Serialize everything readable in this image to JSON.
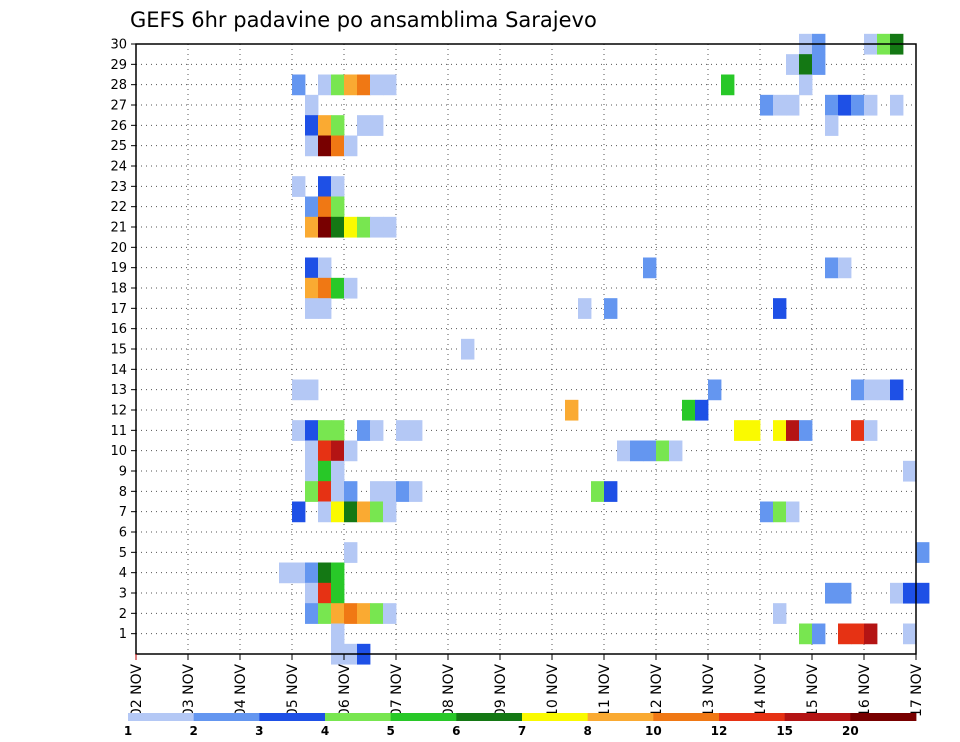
{
  "chart_data": {
    "type": "heatmap",
    "title": "GEFS 6hr padavine po ansamblima Sarajevo",
    "xlabel": "",
    "ylabel": "",
    "y_tick_labels": [
      "1",
      "2",
      "3",
      "4",
      "5",
      "6",
      "7",
      "8",
      "9",
      "10",
      "11",
      "12",
      "13",
      "14",
      "15",
      "16",
      "17",
      "18",
      "19",
      "20",
      "21",
      "22",
      "23",
      "24",
      "25",
      "26",
      "27",
      "28",
      "29",
      "30"
    ],
    "x_tick_labels": [
      "02 NOV",
      "03 NOV",
      "04 NOV",
      "05 NOV",
      "06 NOV",
      "07 NOV",
      "08 NOV",
      "09 NOV",
      "10 NOV",
      "11 NOV",
      "12 NOV",
      "13 NOV",
      "14 NOV",
      "15 NOV",
      "16 NOV",
      "17 NOV"
    ],
    "x_range_days": [
      0,
      15
    ],
    "y_range_members": [
      0,
      30
    ],
    "grid": true,
    "time_step_hours": 6,
    "colorbar": {
      "colors": [
        "#b4c8f5",
        "#6496f0",
        "#1e50e6",
        "#78e650",
        "#28c828",
        "#147814",
        "#fafa00",
        "#faaa32",
        "#f07814",
        "#e63214",
        "#b41414",
        "#780000"
      ],
      "tick_labels": [
        "1",
        "2",
        "3",
        "4",
        "5",
        "6",
        "7",
        "8",
        "10",
        "12",
        "15",
        "20"
      ]
    },
    "units_note": "columns are 6-hour steps from 02 NOV 00Z; value = colorbar class index 0-11",
    "cells": [
      {
        "member": 30,
        "step": 51,
        "class": 0
      },
      {
        "member": 30,
        "step": 52,
        "class": 1
      },
      {
        "member": 30,
        "step": 56,
        "class": 0
      },
      {
        "member": 30,
        "step": 57,
        "class": 3
      },
      {
        "member": 30,
        "step": 58,
        "class": 5
      },
      {
        "member": 29,
        "step": 50,
        "class": 0
      },
      {
        "member": 29,
        "step": 51,
        "class": 5
      },
      {
        "member": 29,
        "step": 52,
        "class": 1
      },
      {
        "member": 28,
        "step": 12,
        "class": 1
      },
      {
        "member": 28,
        "step": 14,
        "class": 0
      },
      {
        "member": 28,
        "step": 15,
        "class": 3
      },
      {
        "member": 28,
        "step": 16,
        "class": 7
      },
      {
        "member": 28,
        "step": 17,
        "class": 8
      },
      {
        "member": 28,
        "step": 18,
        "class": 0
      },
      {
        "member": 28,
        "step": 19,
        "class": 0
      },
      {
        "member": 28,
        "step": 45,
        "class": 4
      },
      {
        "member": 28,
        "step": 51,
        "class": 0
      },
      {
        "member": 27,
        "step": 13,
        "class": 0
      },
      {
        "member": 27,
        "step": 48,
        "class": 1
      },
      {
        "member": 27,
        "step": 49,
        "class": 0
      },
      {
        "member": 27,
        "step": 50,
        "class": 0
      },
      {
        "member": 27,
        "step": 53,
        "class": 1
      },
      {
        "member": 27,
        "step": 54,
        "class": 2
      },
      {
        "member": 27,
        "step": 55,
        "class": 1
      },
      {
        "member": 27,
        "step": 56,
        "class": 0
      },
      {
        "member": 27,
        "step": 58,
        "class": 0
      },
      {
        "member": 26,
        "step": 13,
        "class": 2
      },
      {
        "member": 26,
        "step": 14,
        "class": 7
      },
      {
        "member": 26,
        "step": 15,
        "class": 3
      },
      {
        "member": 26,
        "step": 17,
        "class": 0
      },
      {
        "member": 26,
        "step": 18,
        "class": 0
      },
      {
        "member": 26,
        "step": 53,
        "class": 0
      },
      {
        "member": 25,
        "step": 13,
        "class": 0
      },
      {
        "member": 25,
        "step": 14,
        "class": 11
      },
      {
        "member": 25,
        "step": 15,
        "class": 8
      },
      {
        "member": 25,
        "step": 16,
        "class": 0
      },
      {
        "member": 23,
        "step": 12,
        "class": 0
      },
      {
        "member": 23,
        "step": 14,
        "class": 2
      },
      {
        "member": 23,
        "step": 15,
        "class": 0
      },
      {
        "member": 22,
        "step": 13,
        "class": 1
      },
      {
        "member": 22,
        "step": 14,
        "class": 8
      },
      {
        "member": 22,
        "step": 15,
        "class": 3
      },
      {
        "member": 21,
        "step": 13,
        "class": 7
      },
      {
        "member": 21,
        "step": 14,
        "class": 11
      },
      {
        "member": 21,
        "step": 15,
        "class": 5
      },
      {
        "member": 21,
        "step": 16,
        "class": 6
      },
      {
        "member": 21,
        "step": 17,
        "class": 3
      },
      {
        "member": 21,
        "step": 18,
        "class": 0
      },
      {
        "member": 21,
        "step": 19,
        "class": 0
      },
      {
        "member": 19,
        "step": 13,
        "class": 2
      },
      {
        "member": 19,
        "step": 14,
        "class": 0
      },
      {
        "member": 19,
        "step": 39,
        "class": 1
      },
      {
        "member": 19,
        "step": 53,
        "class": 1
      },
      {
        "member": 19,
        "step": 54,
        "class": 0
      },
      {
        "member": 18,
        "step": 13,
        "class": 7
      },
      {
        "member": 18,
        "step": 14,
        "class": 8
      },
      {
        "member": 18,
        "step": 15,
        "class": 4
      },
      {
        "member": 18,
        "step": 16,
        "class": 0
      },
      {
        "member": 17,
        "step": 13,
        "class": 0
      },
      {
        "member": 17,
        "step": 14,
        "class": 0
      },
      {
        "member": 17,
        "step": 34,
        "class": 0
      },
      {
        "member": 17,
        "step": 36,
        "class": 1
      },
      {
        "member": 17,
        "step": 49,
        "class": 2
      },
      {
        "member": 15,
        "step": 25,
        "class": 0
      },
      {
        "member": 13,
        "step": 12,
        "class": 0
      },
      {
        "member": 13,
        "step": 13,
        "class": 0
      },
      {
        "member": 13,
        "step": 44,
        "class": 1
      },
      {
        "member": 13,
        "step": 55,
        "class": 1
      },
      {
        "member": 13,
        "step": 56,
        "class": 0
      },
      {
        "member": 13,
        "step": 57,
        "class": 0
      },
      {
        "member": 13,
        "step": 58,
        "class": 2
      },
      {
        "member": 12,
        "step": 33,
        "class": 7
      },
      {
        "member": 12,
        "step": 42,
        "class": 4
      },
      {
        "member": 12,
        "step": 43,
        "class": 2
      },
      {
        "member": 11,
        "step": 12,
        "class": 0
      },
      {
        "member": 11,
        "step": 13,
        "class": 2
      },
      {
        "member": 11,
        "step": 14,
        "class": 3
      },
      {
        "member": 11,
        "step": 15,
        "class": 3
      },
      {
        "member": 11,
        "step": 17,
        "class": 1
      },
      {
        "member": 11,
        "step": 18,
        "class": 0
      },
      {
        "member": 11,
        "step": 20,
        "class": 0
      },
      {
        "member": 11,
        "step": 21,
        "class": 0
      },
      {
        "member": 11,
        "step": 46,
        "class": 6
      },
      {
        "member": 11,
        "step": 47,
        "class": 6
      },
      {
        "member": 11,
        "step": 49,
        "class": 6
      },
      {
        "member": 11,
        "step": 50,
        "class": 10
      },
      {
        "member": 11,
        "step": 51,
        "class": 1
      },
      {
        "member": 11,
        "step": 55,
        "class": 9
      },
      {
        "member": 11,
        "step": 56,
        "class": 0
      },
      {
        "member": 10,
        "step": 13,
        "class": 0
      },
      {
        "member": 10,
        "step": 14,
        "class": 9
      },
      {
        "member": 10,
        "step": 15,
        "class": 10
      },
      {
        "member": 10,
        "step": 16,
        "class": 0
      },
      {
        "member": 10,
        "step": 37,
        "class": 0
      },
      {
        "member": 10,
        "step": 38,
        "class": 1
      },
      {
        "member": 10,
        "step": 39,
        "class": 1
      },
      {
        "member": 10,
        "step": 40,
        "class": 3
      },
      {
        "member": 10,
        "step": 41,
        "class": 0
      },
      {
        "member": 9,
        "step": 13,
        "class": 0
      },
      {
        "member": 9,
        "step": 14,
        "class": 4
      },
      {
        "member": 9,
        "step": 15,
        "class": 0
      },
      {
        "member": 9,
        "step": 59,
        "class": 0
      },
      {
        "member": 8,
        "step": 13,
        "class": 3
      },
      {
        "member": 8,
        "step": 14,
        "class": 9
      },
      {
        "member": 8,
        "step": 15,
        "class": 0
      },
      {
        "member": 8,
        "step": 16,
        "class": 1
      },
      {
        "member": 8,
        "step": 18,
        "class": 0
      },
      {
        "member": 8,
        "step": 19,
        "class": 0
      },
      {
        "member": 8,
        "step": 20,
        "class": 1
      },
      {
        "member": 8,
        "step": 21,
        "class": 0
      },
      {
        "member": 8,
        "step": 35,
        "class": 3
      },
      {
        "member": 8,
        "step": 36,
        "class": 2
      },
      {
        "member": 7,
        "step": 12,
        "class": 2
      },
      {
        "member": 7,
        "step": 14,
        "class": 0
      },
      {
        "member": 7,
        "step": 15,
        "class": 6
      },
      {
        "member": 7,
        "step": 16,
        "class": 5
      },
      {
        "member": 7,
        "step": 17,
        "class": 7
      },
      {
        "member": 7,
        "step": 18,
        "class": 3
      },
      {
        "member": 7,
        "step": 19,
        "class": 0
      },
      {
        "member": 7,
        "step": 48,
        "class": 1
      },
      {
        "member": 7,
        "step": 49,
        "class": 3
      },
      {
        "member": 7,
        "step": 50,
        "class": 0
      },
      {
        "member": 5,
        "step": 16,
        "class": 0
      },
      {
        "member": 5,
        "step": 60,
        "class": 1
      },
      {
        "member": 4,
        "step": 11,
        "class": 0
      },
      {
        "member": 4,
        "step": 12,
        "class": 0
      },
      {
        "member": 4,
        "step": 13,
        "class": 1
      },
      {
        "member": 4,
        "step": 14,
        "class": 5
      },
      {
        "member": 4,
        "step": 15,
        "class": 4
      },
      {
        "member": 3,
        "step": 13,
        "class": 0
      },
      {
        "member": 3,
        "step": 14,
        "class": 9
      },
      {
        "member": 3,
        "step": 15,
        "class": 4
      },
      {
        "member": 3,
        "step": 53,
        "class": 1
      },
      {
        "member": 3,
        "step": 54,
        "class": 1
      },
      {
        "member": 3,
        "step": 58,
        "class": 0
      },
      {
        "member": 3,
        "step": 59,
        "class": 2
      },
      {
        "member": 3,
        "step": 60,
        "class": 2
      },
      {
        "member": 2,
        "step": 13,
        "class": 1
      },
      {
        "member": 2,
        "step": 14,
        "class": 3
      },
      {
        "member": 2,
        "step": 15,
        "class": 7
      },
      {
        "member": 2,
        "step": 16,
        "class": 8
      },
      {
        "member": 2,
        "step": 17,
        "class": 7
      },
      {
        "member": 2,
        "step": 18,
        "class": 3
      },
      {
        "member": 2,
        "step": 19,
        "class": 0
      },
      {
        "member": 2,
        "step": 49,
        "class": 0
      },
      {
        "member": 1,
        "step": 15,
        "class": 0
      },
      {
        "member": 1,
        "step": 51,
        "class": 3
      },
      {
        "member": 1,
        "step": 52,
        "class": 1
      },
      {
        "member": 1,
        "step": 54,
        "class": 9
      },
      {
        "member": 1,
        "step": 55,
        "class": 9
      },
      {
        "member": 1,
        "step": 56,
        "class": 10
      },
      {
        "member": 1,
        "step": 59,
        "class": 0
      },
      {
        "member": 0,
        "step": 15,
        "class": 0
      },
      {
        "member": 0,
        "step": 16,
        "class": 0
      },
      {
        "member": 0,
        "step": 17,
        "class": 2
      }
    ]
  }
}
